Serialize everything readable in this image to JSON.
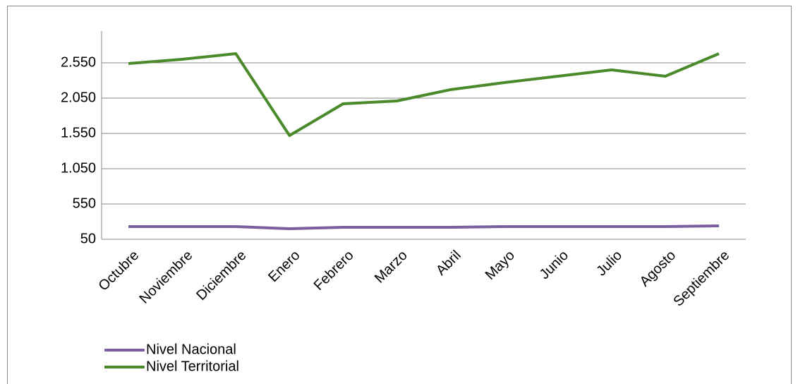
{
  "chart_data": {
    "type": "line",
    "categories": [
      "Octubre",
      "Noviembre",
      "Diciembre",
      "Enero",
      "Febrero",
      "Marzo",
      "Abril",
      "Mayo",
      "Junio",
      "Julio",
      "Agosto",
      "Septiembre"
    ],
    "series": [
      {
        "name": "Nivel Nacional",
        "color": "#7b5ea0",
        "values": [
          230,
          230,
          230,
          200,
          220,
          220,
          220,
          230,
          230,
          230,
          230,
          240
        ]
      },
      {
        "name": "Nivel Territorial",
        "color": "#4a8a2a",
        "values": [
          2540,
          2600,
          2680,
          1520,
          1970,
          2010,
          2170,
          2270,
          2360,
          2450,
          2360,
          2680
        ]
      }
    ],
    "ylim": [
      50,
      3000
    ],
    "yticks": [
      50,
      550,
      {
        "value": 1050,
        "label": "1.050"
      },
      {
        "value": 1550,
        "label": "1.550"
      },
      {
        "value": 2050,
        "label": "2.050"
      },
      {
        "value": 2550,
        "label": "2.550"
      }
    ],
    "grid": true,
    "legend": "bottom-left"
  }
}
